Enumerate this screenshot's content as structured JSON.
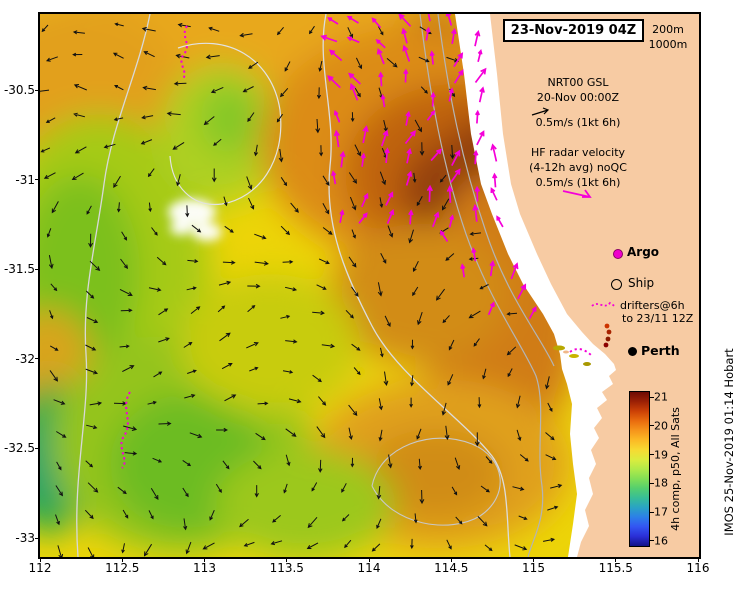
{
  "title_box": {
    "label": "23-Nov-2019 04Z"
  },
  "contour_legend": {
    "depth1": "200m",
    "depth2": "1000m"
  },
  "legend": {
    "nrt": {
      "line1": "NRT00 GSL",
      "line2": "20-Nov 00:00Z",
      "scale": "0.5m/s (1kt 6h)"
    },
    "hf": {
      "line1": "HF radar velocity",
      "line2": "(4-12h avg) noQC",
      "scale": "0.5m/s (1kt 6h)"
    },
    "argo": "Argo",
    "ship": "Ship",
    "drifters_line1": "drifters@6h",
    "drifters_line2": "to 23/11 12Z"
  },
  "perth": {
    "label": "Perth"
  },
  "colorbar": {
    "label": "4h comp, p50, All Sats",
    "ticks": [
      "21",
      "20",
      "19",
      "18",
      "17",
      "16"
    ],
    "colors_top_to_bottom": [
      "#6e0b04",
      "#9c2105",
      "#cc4106",
      "#ea6c0e",
      "#f6951b",
      "#fcba25",
      "#f7da32",
      "#dcec3e",
      "#b2ea49",
      "#83df55",
      "#55cf6e",
      "#37bd97",
      "#2aa3c4",
      "#2c7fe8",
      "#3355f2",
      "#2a2ed6",
      "#131187"
    ]
  },
  "axes": {
    "x_ticks": [
      "112",
      "112.5",
      "113",
      "113.5",
      "114",
      "114.5",
      "115",
      "115.5",
      "116"
    ],
    "y_ticks": [
      "-30.5",
      "-31",
      "-31.5",
      "-32",
      "-32.5",
      "-33"
    ]
  },
  "credit": {
    "text": "IMOS 25-Nov-2019 01:14 Hobart"
  },
  "colors": {
    "magenta": "#f400d8",
    "land": "#f7cba3",
    "ocean_base": "#ecd408",
    "arrow_black": "#111111"
  },
  "chart_data": {
    "type": "heatmap",
    "title": "23-Nov-2019 04Z",
    "x_range": [
      112,
      116
    ],
    "y_range": [
      -33.1,
      -30.1
    ],
    "xlabel": "",
    "ylabel": "",
    "colorbar_range": [
      16,
      21
    ],
    "colorbar_label": "4h comp, p50, All Sats",
    "overlays": [
      "NRT00 GSL velocity vectors",
      "HF radar velocity vectors",
      "Argo floats",
      "Ship",
      "drifters",
      "200m and 1000m isobaths"
    ]
  }
}
